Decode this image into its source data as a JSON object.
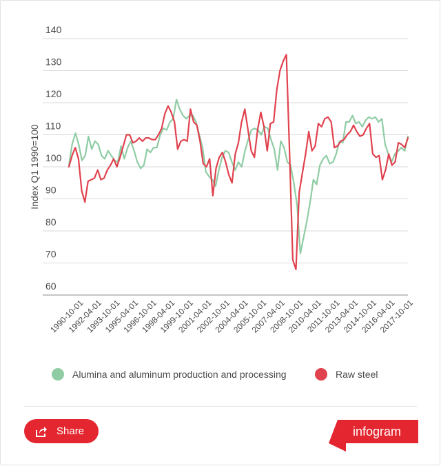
{
  "chart_data": {
    "type": "line",
    "title": "",
    "xlabel": "",
    "ylabel": "Index Q1 1990=100",
    "ylim": [
      60,
      140
    ],
    "yticks": [
      60,
      70,
      80,
      90,
      100,
      110,
      120,
      130,
      140
    ],
    "x_tick_labels": [
      "1990-10-01",
      "1992-04-01",
      "1993-10-01",
      "1995-04-01",
      "1996-10-01",
      "1998-04-01",
      "1999-10-01",
      "2001-04-01",
      "2002-10-01",
      "2004-04-01",
      "2005-10-01",
      "2007-04-01",
      "2008-10-01",
      "2010-04-01",
      "2011-10-01",
      "2013-04-01",
      "2014-10-01",
      "2016-04-01",
      "2017-10-01"
    ],
    "x_range": [
      1990.0,
      2017.75
    ],
    "grid": "horizontal",
    "legend_position": "bottom",
    "series": [
      {
        "name": "Alumina and aluminum production and processing",
        "color": "#8fcca4",
        "values": [
          100.5,
          107,
          110.5,
          107,
          102,
          103.5,
          109.5,
          105.5,
          108,
          107,
          103.5,
          102.5,
          105,
          103.5,
          102,
          101.5,
          106.5,
          102.5,
          106,
          108,
          105,
          101.5,
          99.5,
          100.5,
          105.5,
          104.5,
          106,
          106,
          110,
          112,
          111.5,
          114,
          115,
          121,
          118,
          116,
          115,
          116,
          116,
          114,
          110,
          106,
          98.5,
          97,
          96,
          94,
          99,
          103,
          105,
          104.5,
          101.5,
          99,
          101.5,
          100,
          105,
          108.5,
          111.5,
          112,
          111.5,
          110,
          112.5,
          112,
          108.5,
          105.5,
          99,
          108,
          106,
          101.5,
          100.5,
          95,
          88,
          73,
          78,
          83,
          89,
          96,
          94.5,
          100.5,
          102.5,
          103.5,
          101,
          101.5,
          104,
          108,
          107.5,
          114,
          114,
          116,
          113.5,
          114,
          112.5,
          114.5,
          115.5,
          115,
          115.5,
          114,
          115,
          107,
          104,
          101.5,
          104,
          105,
          106,
          105,
          109.5
        ]
      },
      {
        "name": "Raw steel",
        "color": "#e0424e",
        "values": [
          100,
          103.5,
          106,
          102.5,
          92.5,
          89,
          95.5,
          96,
          96.5,
          99,
          96,
          96.5,
          99,
          100.5,
          102.5,
          100,
          103,
          106.5,
          110,
          110,
          107.5,
          108,
          109,
          108,
          109,
          109,
          108.5,
          108.5,
          110,
          112,
          116.5,
          119,
          117,
          114,
          105.5,
          108,
          108.5,
          108,
          118,
          114,
          113,
          108,
          101,
          100,
          102.5,
          91,
          99.5,
          103,
          104.5,
          101.5,
          97.5,
          95,
          104,
          107.5,
          114,
          118,
          111.5,
          105,
          103,
          111.5,
          117,
          112.5,
          105,
          113.5,
          114,
          124,
          130,
          133,
          135,
          104,
          71,
          68,
          92,
          98,
          104,
          111,
          105,
          106.5,
          113.5,
          112.5,
          115,
          115.5,
          114,
          106,
          106.5,
          108,
          108.5,
          110,
          111,
          113,
          111,
          109.5,
          110,
          112,
          113.5,
          104,
          103,
          103.5,
          96,
          99,
          104,
          100.5,
          101.5,
          107.5,
          107,
          106,
          109
        ]
      }
    ]
  },
  "share": {
    "label": "Share",
    "icon": "share-icon"
  },
  "brand": {
    "label": "infogram",
    "color": "#e3262f"
  }
}
